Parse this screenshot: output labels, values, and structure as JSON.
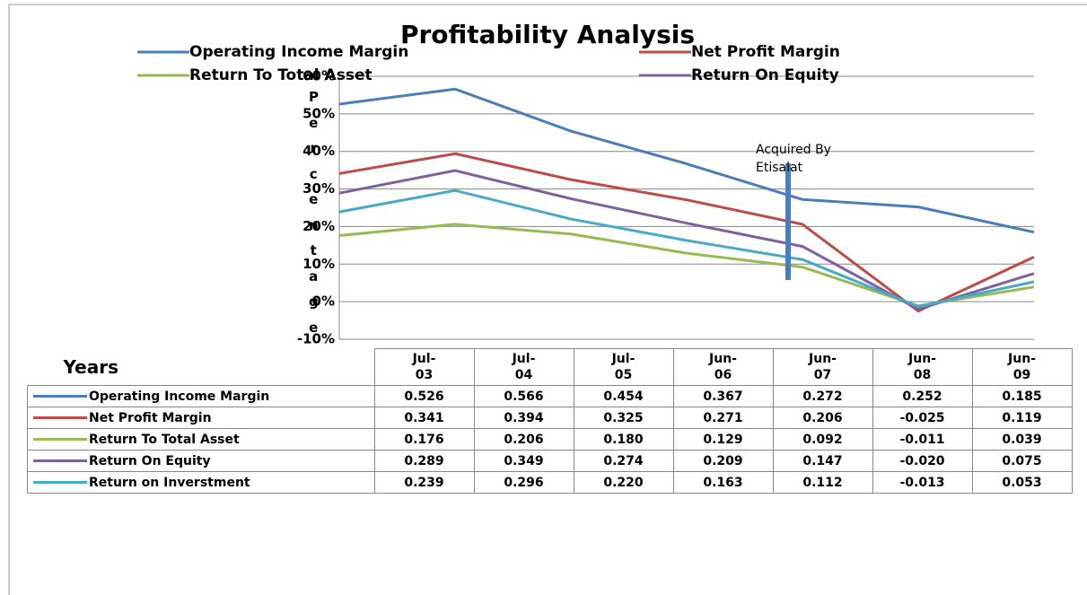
{
  "chart_data": {
    "type": "line",
    "title": "Profitability Analysis",
    "y_label": "Percentage",
    "table_header": "Years",
    "annotation": "Acquired By Etisalat",
    "categories": [
      "Jul-03",
      "Jul-04",
      "Jul-05",
      "Jun-06",
      "Jun-07",
      "Jun-08",
      "Jun-09"
    ],
    "ylim": [
      -0.1,
      0.6
    ],
    "yticks": [
      {
        "value": -0.1,
        "label": "-10%"
      },
      {
        "value": 0,
        "label": "0%"
      },
      {
        "value": 0.1,
        "label": "10%"
      },
      {
        "value": 0.2,
        "label": "20%"
      },
      {
        "value": 0.3,
        "label": "30%"
      },
      {
        "value": 0.4,
        "label": "40%"
      },
      {
        "value": 0.5,
        "label": "50%"
      },
      {
        "value": 0.6,
        "label": "60%"
      }
    ],
    "grid": true,
    "legend_series": 4,
    "series": [
      {
        "name": "Operating Income Margin",
        "color": "#4a7ebb",
        "values": [
          0.526,
          0.566,
          0.454,
          0.367,
          0.272,
          0.252,
          0.185
        ],
        "value_labels": [
          "0.526",
          "0.566",
          "0.454",
          "0.367",
          "0.272",
          "0.252",
          "0.185"
        ]
      },
      {
        "name": "Net Profit Margin",
        "color": "#be4b48",
        "values": [
          0.341,
          0.394,
          0.325,
          0.271,
          0.206,
          -0.025,
          0.119
        ],
        "value_labels": [
          "0.341",
          "0.394",
          "0.325",
          "0.271",
          "0.206",
          "-0.025",
          "0.119"
        ]
      },
      {
        "name": "Return To Total Asset",
        "color": "#98b954",
        "values": [
          0.176,
          0.206,
          0.18,
          0.129,
          0.092,
          -0.011,
          0.039
        ],
        "value_labels": [
          "0.176",
          "0.206",
          "0.180",
          "0.129",
          "0.092",
          "-0.011",
          "0.039"
        ]
      },
      {
        "name": "Return On Equity",
        "color": "#7d60a0",
        "values": [
          0.289,
          0.349,
          0.274,
          0.209,
          0.147,
          -0.02,
          0.075
        ],
        "value_labels": [
          "0.289",
          "0.349",
          "0.274",
          "0.209",
          "0.147",
          "-0.020",
          "0.075"
        ]
      },
      {
        "name": "Return on Inverstment",
        "color": "#46aac5",
        "values": [
          0.239,
          0.296,
          0.22,
          0.163,
          0.112,
          -0.013,
          0.053
        ],
        "value_labels": [
          "0.239",
          "0.296",
          "0.220",
          "0.163",
          "0.112",
          "-0.013",
          "0.053"
        ]
      }
    ]
  }
}
